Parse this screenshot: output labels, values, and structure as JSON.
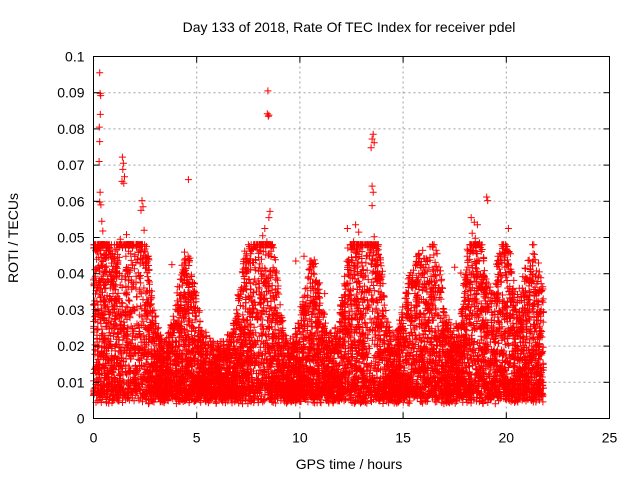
{
  "chart_data": {
    "type": "scatter",
    "title": "Day 133 of 2018, Rate Of TEC Index for receiver pdel",
    "xlabel": "GPS time / hours",
    "ylabel": "ROTI / TECUs",
    "xlim": [
      0,
      25
    ],
    "ylim": [
      0,
      0.1
    ],
    "x_ticks": [
      0,
      5,
      10,
      15,
      20,
      25
    ],
    "x_tick_labels": [
      "0",
      "5",
      "10",
      "15",
      "20",
      "25"
    ],
    "y_ticks": [
      0,
      0.01,
      0.02,
      0.03,
      0.04,
      0.05,
      0.06,
      0.07,
      0.08,
      0.09,
      0.1
    ],
    "y_tick_labels": [
      "0",
      "0.01",
      "0.02",
      "0.03",
      "0.04",
      "0.05",
      "0.06",
      "0.07",
      "0.08",
      "0.09",
      "0.1"
    ],
    "grid": true,
    "marker": "+",
    "series_color": "#ff0000",
    "series": [
      {
        "name": "ROTI",
        "points": [
          [
            0.3,
            0.0955
          ],
          [
            0.32,
            0.0898
          ],
          [
            0.35,
            0.0892
          ],
          [
            0.33,
            0.084
          ],
          [
            0.28,
            0.0805
          ],
          [
            0.3,
            0.0765
          ],
          [
            0.27,
            0.071
          ],
          [
            0.32,
            0.0625
          ],
          [
            0.3,
            0.0598
          ],
          [
            0.36,
            0.059
          ],
          [
            0.4,
            0.0545
          ],
          [
            0.45,
            0.0518
          ],
          [
            0.1,
            0.0465
          ],
          [
            0.2,
            0.046
          ],
          [
            0.35,
            0.0455
          ],
          [
            0.5,
            0.0452
          ],
          [
            0.25,
            0.0445
          ],
          [
            0.15,
            0.044
          ],
          [
            1.4,
            0.0722
          ],
          [
            1.45,
            0.0705
          ],
          [
            1.42,
            0.0688
          ],
          [
            1.5,
            0.0668
          ],
          [
            1.38,
            0.0655
          ],
          [
            1.47,
            0.065
          ],
          [
            1.6,
            0.0508
          ],
          [
            1.3,
            0.0495
          ],
          [
            1.55,
            0.0472
          ],
          [
            1.7,
            0.0462
          ],
          [
            1.8,
            0.0455
          ],
          [
            1.25,
            0.0445
          ],
          [
            2.35,
            0.0602
          ],
          [
            2.4,
            0.0585
          ],
          [
            2.3,
            0.0575
          ],
          [
            2.45,
            0.052
          ],
          [
            2.5,
            0.046
          ],
          [
            2.55,
            0.0445
          ],
          [
            3.8,
            0.0425
          ],
          [
            4.6,
            0.066
          ],
          [
            4.5,
            0.0375
          ],
          [
            4.6,
            0.0362
          ],
          [
            4.4,
            0.0348
          ],
          [
            7.0,
            0.0342
          ],
          [
            7.5,
            0.0338
          ],
          [
            7.9,
            0.0352
          ],
          [
            8.45,
            0.0905
          ],
          [
            8.42,
            0.0842
          ],
          [
            8.5,
            0.0838
          ],
          [
            8.47,
            0.0835
          ],
          [
            8.55,
            0.0572
          ],
          [
            8.5,
            0.0555
          ],
          [
            8.3,
            0.0525
          ],
          [
            8.2,
            0.0505
          ],
          [
            8.4,
            0.0488
          ],
          [
            8.6,
            0.0462
          ],
          [
            8.35,
            0.0452
          ],
          [
            8.0,
            0.0445
          ],
          [
            9.8,
            0.0435
          ],
          [
            10.2,
            0.0448
          ],
          [
            10.7,
            0.0438
          ],
          [
            10.75,
            0.0428
          ],
          [
            11.2,
            0.0345
          ],
          [
            12.3,
            0.0525
          ],
          [
            12.7,
            0.0535
          ],
          [
            12.85,
            0.0515
          ],
          [
            12.6,
            0.0488
          ],
          [
            12.9,
            0.0468
          ],
          [
            12.75,
            0.0455
          ],
          [
            12.5,
            0.0445
          ],
          [
            13.0,
            0.0442
          ],
          [
            13.55,
            0.0785
          ],
          [
            13.5,
            0.0772
          ],
          [
            13.6,
            0.0762
          ],
          [
            13.45,
            0.0748
          ],
          [
            13.5,
            0.0642
          ],
          [
            13.55,
            0.0625
          ],
          [
            13.5,
            0.0588
          ],
          [
            13.6,
            0.0502
          ],
          [
            13.4,
            0.0465
          ],
          [
            13.7,
            0.0452
          ],
          [
            15.3,
            0.0395
          ],
          [
            15.6,
            0.0422
          ],
          [
            16.1,
            0.0425
          ],
          [
            16.6,
            0.0465
          ],
          [
            16.3,
            0.0445
          ],
          [
            17.5,
            0.0418
          ],
          [
            17.8,
            0.0402
          ],
          [
            18.3,
            0.0555
          ],
          [
            18.45,
            0.0542
          ],
          [
            18.6,
            0.0535
          ],
          [
            18.35,
            0.0512
          ],
          [
            18.5,
            0.0498
          ],
          [
            18.7,
            0.0485
          ],
          [
            18.4,
            0.0465
          ],
          [
            18.55,
            0.0455
          ],
          [
            18.9,
            0.0445
          ],
          [
            19.05,
            0.0612
          ],
          [
            19.1,
            0.0602
          ],
          [
            19.6,
            0.0448
          ],
          [
            20.0,
            0.0475
          ],
          [
            20.05,
            0.0465
          ],
          [
            20.1,
            0.0525
          ],
          [
            20.2,
            0.0455
          ],
          [
            20.8,
            0.0392
          ],
          [
            21.3,
            0.0455
          ],
          [
            21.4,
            0.0438
          ],
          [
            21.6,
            0.0405
          ]
        ]
      }
    ],
    "noise": {
      "description": "dense band of ROTI observations spanning the whole recording",
      "x_range": [
        0,
        21.8
      ],
      "count": 9000,
      "lower_envelope": 0.004,
      "base_level": 0.0135
    }
  }
}
